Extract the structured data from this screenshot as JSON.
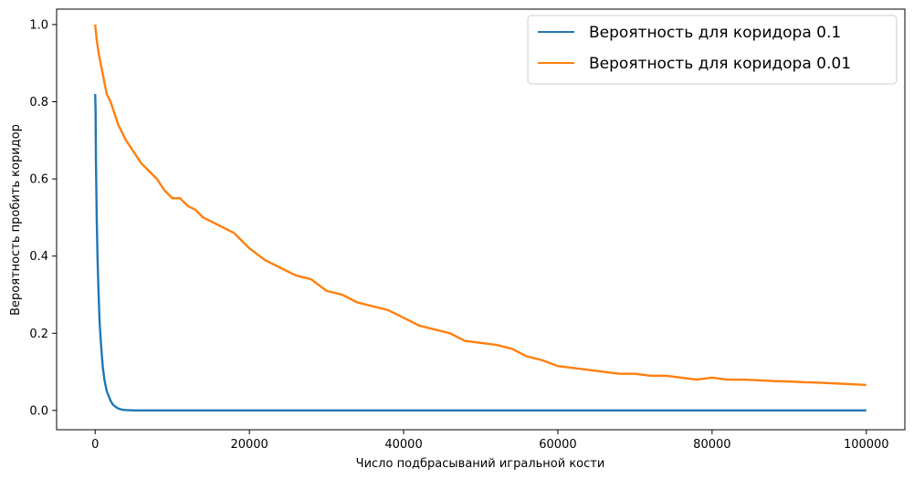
{
  "chart_data": {
    "type": "line",
    "title": "",
    "xlabel": "Число подбрасываний игральной кости",
    "ylabel": "Вероятность пробить коридор",
    "xlim": [
      -5000,
      105000
    ],
    "ylim": [
      -0.05,
      1.04
    ],
    "xticks": [
      0,
      20000,
      40000,
      60000,
      80000,
      100000
    ],
    "xtick_labels": [
      "0",
      "20000",
      "40000",
      "60000",
      "80000",
      "100000"
    ],
    "yticks": [
      0.0,
      0.2,
      0.4,
      0.6,
      0.8,
      1.0
    ],
    "ytick_labels": [
      "0.0",
      "0.2",
      "0.4",
      "0.6",
      "0.8",
      "1.0"
    ],
    "grid": false,
    "legend_position": "top-right",
    "series": [
      {
        "name": "Вероятность для коридора 0.1",
        "color": "#1f77b4",
        "x": [
          0,
          50,
          100,
          200,
          300,
          400,
          500,
          600,
          800,
          1000,
          1200,
          1500,
          1800,
          2000,
          2300,
          2600,
          3000,
          3500,
          4000,
          5000,
          10000,
          20000,
          40000,
          60000,
          80000,
          100000
        ],
        "y": [
          0.82,
          0.78,
          0.65,
          0.5,
          0.4,
          0.33,
          0.27,
          0.22,
          0.16,
          0.11,
          0.08,
          0.05,
          0.035,
          0.025,
          0.015,
          0.01,
          0.005,
          0.002,
          0.001,
          0.0,
          0.0,
          0.0,
          0.0,
          0.0,
          0.0,
          0.0
        ]
      },
      {
        "name": "Вероятность для коридора 0.01",
        "color": "#ff7f0e",
        "x": [
          0,
          200,
          500,
          1000,
          1500,
          2000,
          3000,
          4000,
          5000,
          6000,
          7000,
          8000,
          9000,
          10000,
          11000,
          12000,
          13000,
          14000,
          15000,
          16000,
          17000,
          18000,
          19000,
          20000,
          22000,
          24000,
          26000,
          28000,
          30000,
          32000,
          34000,
          36000,
          38000,
          40000,
          42000,
          44000,
          46000,
          48000,
          50000,
          52000,
          54000,
          56000,
          58000,
          60000,
          62000,
          64000,
          66000,
          68000,
          70000,
          72000,
          74000,
          76000,
          78000,
          80000,
          82000,
          84000,
          86000,
          88000,
          90000,
          92000,
          94000,
          96000,
          98000,
          100000
        ],
        "y": [
          1.0,
          0.96,
          0.92,
          0.87,
          0.82,
          0.8,
          0.74,
          0.7,
          0.67,
          0.64,
          0.62,
          0.6,
          0.57,
          0.55,
          0.55,
          0.53,
          0.52,
          0.5,
          0.49,
          0.48,
          0.47,
          0.46,
          0.44,
          0.42,
          0.39,
          0.37,
          0.35,
          0.34,
          0.31,
          0.3,
          0.28,
          0.27,
          0.26,
          0.24,
          0.22,
          0.21,
          0.2,
          0.18,
          0.175,
          0.17,
          0.16,
          0.14,
          0.13,
          0.115,
          0.11,
          0.105,
          0.1,
          0.095,
          0.095,
          0.09,
          0.09,
          0.085,
          0.08,
          0.085,
          0.08,
          0.08,
          0.078,
          0.076,
          0.075,
          0.073,
          0.072,
          0.07,
          0.068,
          0.066
        ]
      }
    ]
  }
}
